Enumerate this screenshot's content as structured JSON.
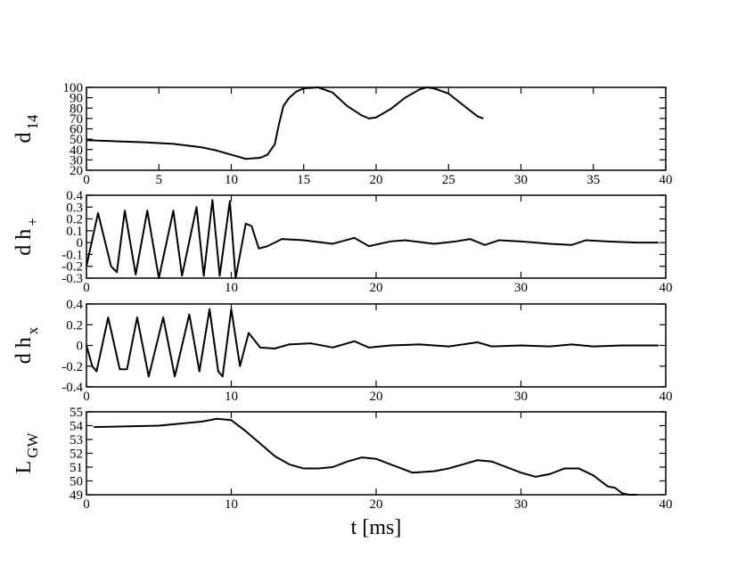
{
  "chart_data": [
    {
      "type": "line",
      "ylabel": "d",
      "ylabel_sub": "14",
      "color": "#000000",
      "x": [
        0,
        2,
        4,
        6,
        8,
        9,
        10,
        11,
        12,
        12.5,
        13,
        13.3,
        13.6,
        14,
        14.5,
        15,
        16,
        17,
        18,
        19,
        19.5,
        20,
        21,
        22,
        23,
        23.5,
        24,
        25,
        26,
        27,
        27.4
      ],
      "values": [
        49,
        48,
        47,
        45.5,
        42,
        39,
        35,
        31,
        32,
        35,
        45,
        65,
        82,
        90,
        96,
        99,
        100,
        95,
        82,
        73,
        70,
        71,
        79,
        90,
        98,
        100,
        99,
        94,
        83,
        72,
        70
      ],
      "xlim": [
        0,
        40
      ],
      "ylim": [
        20,
        100
      ],
      "xticks": [
        0,
        5,
        10,
        15,
        20,
        25,
        30,
        35,
        40
      ],
      "yticks": [
        20,
        30,
        40,
        50,
        60,
        70,
        80,
        90,
        100
      ]
    },
    {
      "type": "line",
      "ylabel": "d h",
      "ylabel_sub": "+",
      "color": "#000000",
      "x": [
        0,
        0.8,
        1.7,
        2.1,
        2.65,
        3.4,
        4.2,
        5,
        6,
        6.6,
        7.6,
        8.1,
        8.7,
        9.2,
        9.9,
        10.3,
        11,
        11.4,
        11.9,
        12.5,
        13.5,
        15,
        17,
        18.5,
        19.5,
        21,
        22,
        24,
        25.5,
        26.5,
        27.5,
        28.5,
        30,
        32,
        33.5,
        34.5,
        36,
        38,
        39.5
      ],
      "values": [
        -0.2,
        0.25,
        -0.2,
        -0.25,
        0.27,
        -0.27,
        0.27,
        -0.3,
        0.27,
        -0.28,
        0.3,
        -0.28,
        0.36,
        -0.28,
        0.35,
        -0.3,
        0.16,
        0.14,
        -0.05,
        -0.03,
        0.03,
        0.02,
        -0.01,
        0.04,
        -0.03,
        0.01,
        0.02,
        -0.01,
        0.01,
        0.03,
        -0.02,
        0.02,
        0.01,
        -0.01,
        -0.02,
        0.02,
        0.01,
        0,
        0
      ],
      "xlim": [
        0,
        40
      ],
      "ylim": [
        -0.3,
        0.4
      ],
      "xticks": [
        0,
        10,
        20,
        30,
        40
      ],
      "yticks": [
        -0.3,
        -0.2,
        -0.1,
        0,
        0.1,
        0.2,
        0.3,
        0.4
      ]
    },
    {
      "type": "line",
      "ylabel": "d h",
      "ylabel_sub": "x",
      "color": "#000000",
      "x": [
        0,
        0.4,
        0.7,
        1.5,
        2.3,
        2.8,
        3.5,
        4.3,
        5.3,
        6.1,
        7.1,
        7.8,
        8.5,
        9.1,
        9.4,
        10,
        10.6,
        11.2,
        12,
        13,
        14,
        15.5,
        17,
        18.5,
        19.5,
        21,
        23,
        25,
        27,
        28,
        30,
        32,
        33.5,
        35,
        37,
        39.5
      ],
      "values": [
        0,
        -0.2,
        -0.25,
        0.27,
        -0.23,
        -0.23,
        0.27,
        -0.3,
        0.27,
        -0.3,
        0.3,
        -0.25,
        0.35,
        -0.25,
        -0.3,
        0.35,
        -0.2,
        0.12,
        -0.02,
        -0.03,
        0.01,
        0.02,
        -0.02,
        0.04,
        -0.02,
        0,
        0.01,
        -0.01,
        0.03,
        -0.01,
        0,
        -0.01,
        0.01,
        -0.01,
        0,
        0
      ],
      "xlim": [
        0,
        40
      ],
      "ylim": [
        -0.4,
        0.4
      ],
      "xticks": [
        0,
        10,
        20,
        30,
        40
      ],
      "yticks": [
        -0.4,
        -0.2,
        0,
        0.2,
        0.4
      ]
    },
    {
      "type": "line",
      "ylabel": "L",
      "ylabel_sub": "GW",
      "xlabel": "t [ms]",
      "color": "#000000",
      "x": [
        0.5,
        5,
        8,
        9,
        10,
        11,
        12,
        13,
        14,
        15,
        16,
        17,
        18,
        19,
        20,
        21,
        22,
        22.5,
        24,
        25,
        26,
        27,
        28,
        29,
        30,
        31,
        32,
        33,
        34,
        35,
        36,
        36.5,
        37,
        37.5,
        38
      ],
      "values": [
        53.9,
        54,
        54.3,
        54.5,
        54.4,
        53.6,
        52.7,
        51.8,
        51.2,
        50.9,
        50.9,
        51,
        51.4,
        51.7,
        51.6,
        51.2,
        50.8,
        50.6,
        50.7,
        50.9,
        51.2,
        51.5,
        51.4,
        51,
        50.6,
        50.3,
        50.5,
        50.9,
        50.9,
        50.4,
        49.6,
        49.5,
        49.1,
        49,
        49
      ],
      "xlim": [
        0,
        40
      ],
      "ylim": [
        49,
        55
      ],
      "xticks": [
        0,
        10,
        20,
        30,
        40
      ],
      "yticks": [
        49,
        50,
        51,
        52,
        53,
        54,
        55
      ]
    }
  ]
}
